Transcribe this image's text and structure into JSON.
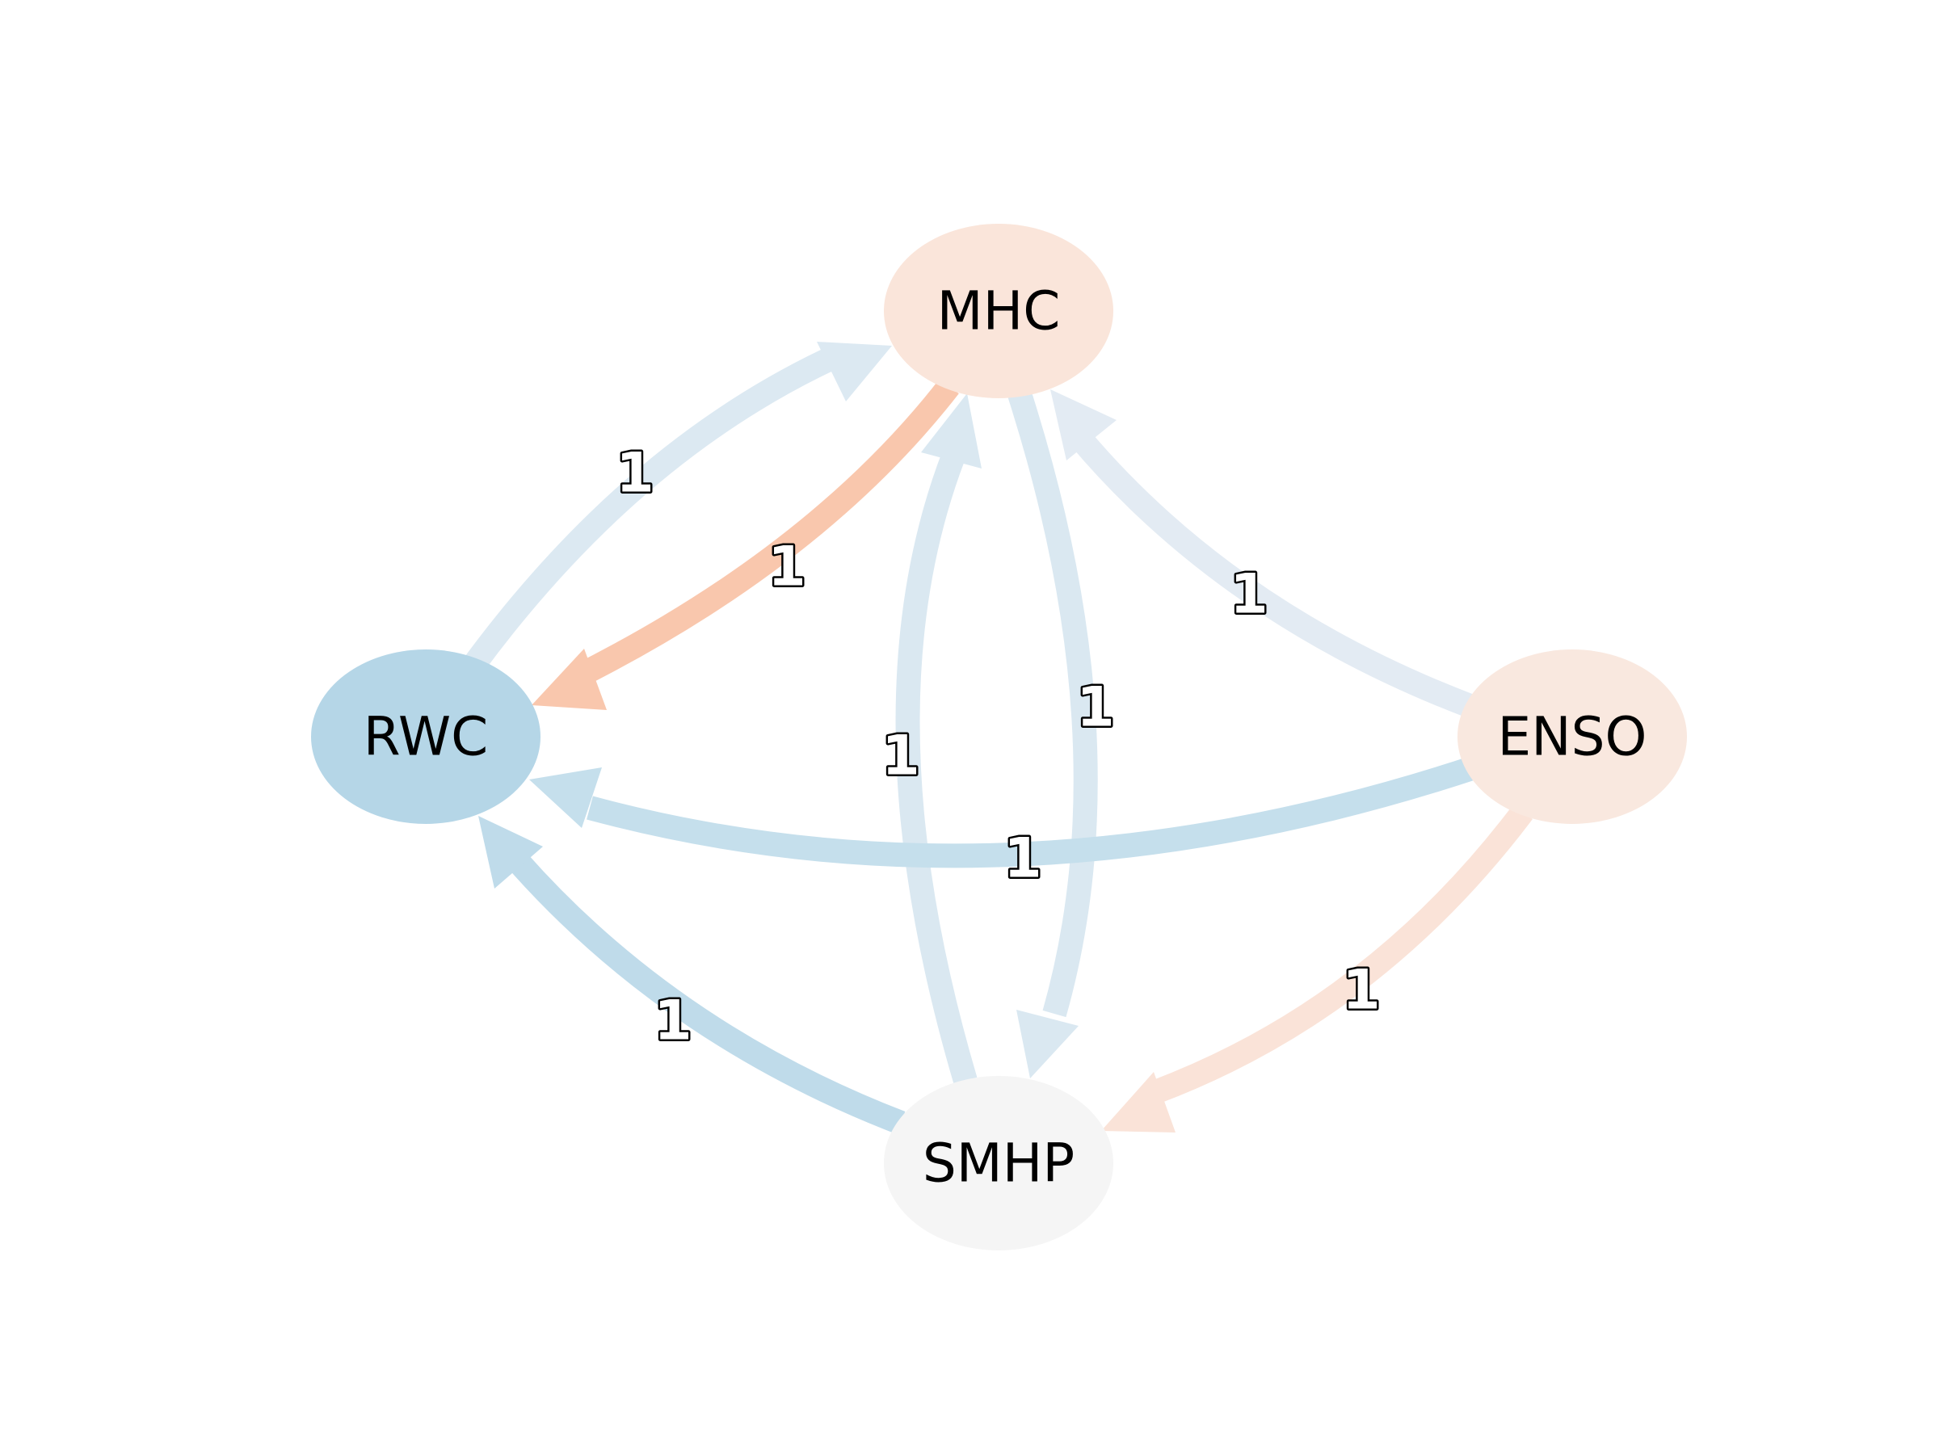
{
  "nodes": [
    {
      "id": "MHC",
      "label": "MHC",
      "color": "#fae5da"
    },
    {
      "id": "RWC",
      "label": "RWC",
      "color": "#b5d6e7"
    },
    {
      "id": "ENSO",
      "label": "ENSO",
      "color": "#f9e8df"
    },
    {
      "id": "SMHP",
      "label": "SMHP",
      "color": "#f5f5f5"
    }
  ],
  "edges": [
    {
      "source": "RWC",
      "target": "MHC",
      "label": "1",
      "color": "#dce9f2"
    },
    {
      "source": "MHC",
      "target": "RWC",
      "label": "1",
      "color": "#f9c7ad"
    },
    {
      "source": "SMHP",
      "target": "MHC",
      "label": "1",
      "color": "#dae8f1"
    },
    {
      "source": "MHC",
      "target": "SMHP",
      "label": "1",
      "color": "#dae8f1"
    },
    {
      "source": "ENSO",
      "target": "MHC",
      "label": "1",
      "color": "#e3ebf3"
    },
    {
      "source": "ENSO",
      "target": "RWC",
      "label": "1",
      "color": "#c5dfec"
    },
    {
      "source": "SMHP",
      "target": "RWC",
      "label": "1",
      "color": "#bfdbea"
    },
    {
      "source": "ENSO",
      "target": "SMHP",
      "label": "1",
      "color": "#fae3d8"
    }
  ]
}
